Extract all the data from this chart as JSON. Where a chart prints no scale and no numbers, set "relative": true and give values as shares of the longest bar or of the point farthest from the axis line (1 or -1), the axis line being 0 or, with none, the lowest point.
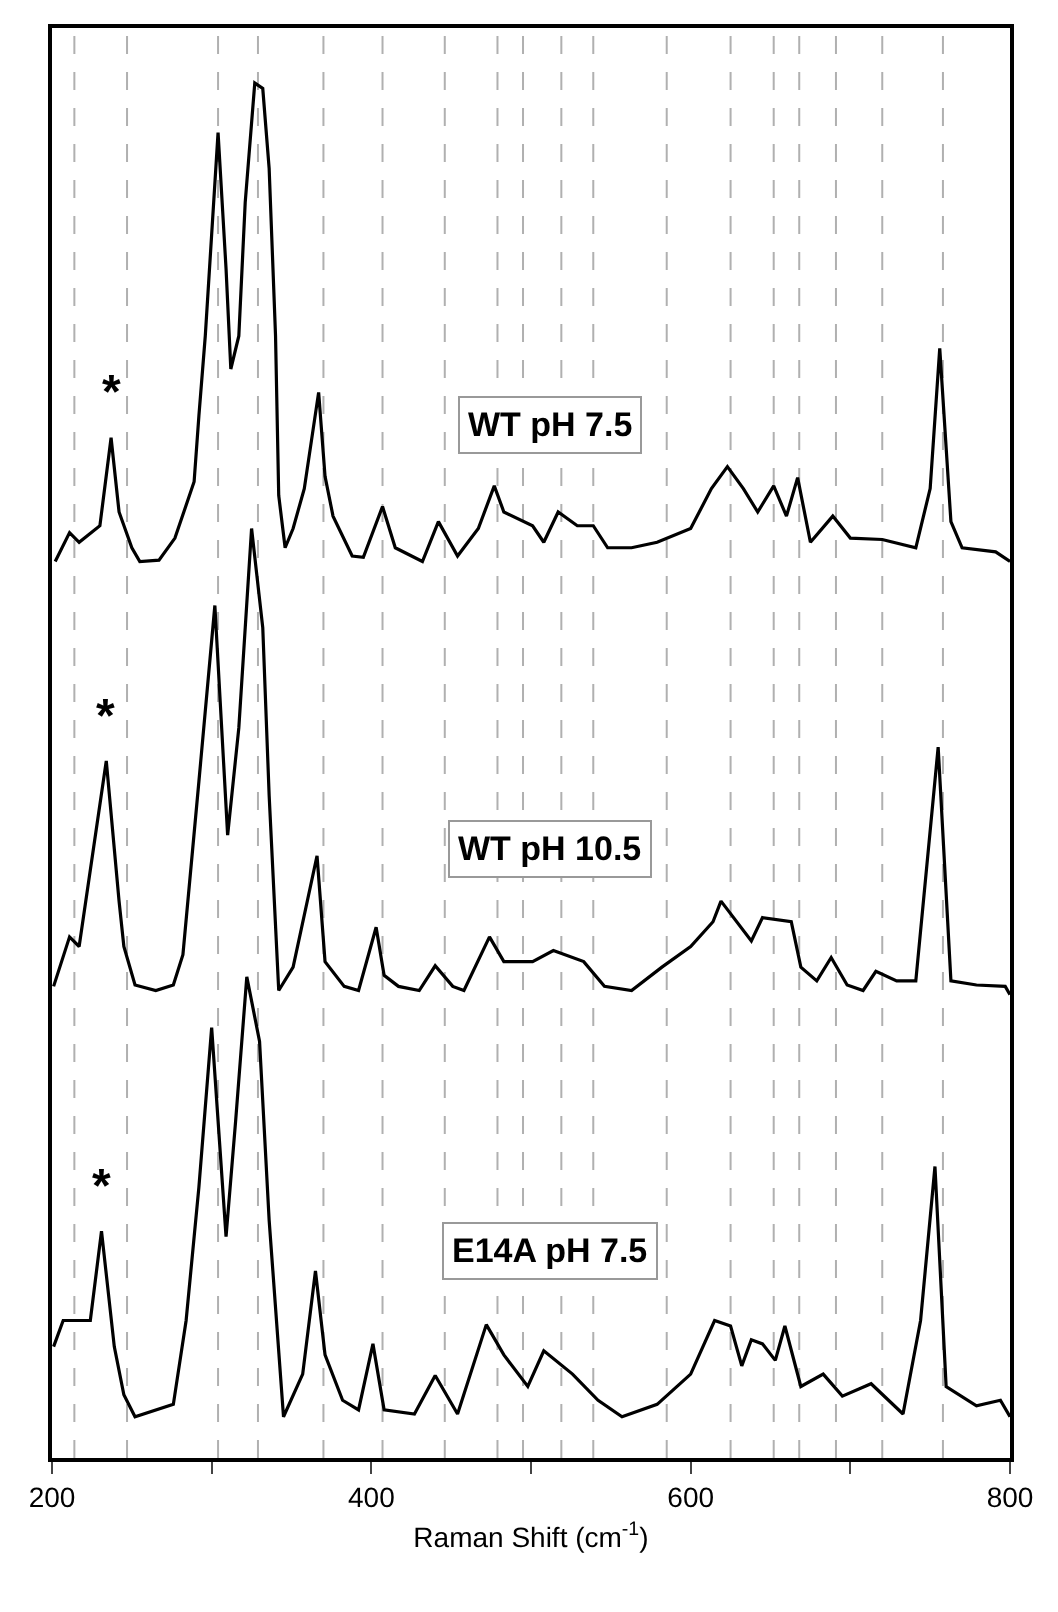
{
  "chart_data": {
    "type": "line",
    "relative": true,
    "xlabel": "Raman Shift (cm$^{-1}$)",
    "xlim": [
      200,
      800
    ],
    "xticks": [
      200,
      {
        "value": 300,
        "label": null
      },
      400,
      {
        "value": 500,
        "label": null
      },
      600,
      {
        "value": 700,
        "label": null
      },
      800
    ],
    "grid": false,
    "legend": false,
    "marker": "none",
    "line_style": "solid",
    "series": [
      {
        "name": "WT pH 7.5",
        "color": "#000000",
        "x": [
          202,
          211,
          217,
          230,
          237,
          242,
          250,
          255,
          267,
          277,
          289,
          292,
          296,
          304,
          309,
          312,
          317,
          321,
          327,
          332,
          336,
          340,
          342,
          346,
          351,
          358,
          367,
          371,
          376,
          388,
          395,
          407,
          415,
          432,
          442,
          454,
          467,
          477,
          483,
          501,
          508,
          517,
          529,
          539,
          548,
          563,
          579,
          600,
          613,
          623,
          633,
          642,
          652,
          660,
          667,
          675,
          689,
          700,
          720,
          741,
          750,
          756,
          763,
          770,
          791,
          800
        ],
        "values": [
          0.652,
          0.673,
          0.666,
          0.678,
          0.742,
          0.688,
          0.662,
          0.652,
          0.653,
          0.669,
          0.71,
          0.758,
          0.816,
          0.964,
          0.865,
          0.792,
          0.816,
          0.913,
          1.0,
          0.996,
          0.938,
          0.816,
          0.7,
          0.662,
          0.676,
          0.705,
          0.775,
          0.714,
          0.685,
          0.656,
          0.655,
          0.692,
          0.662,
          0.652,
          0.681,
          0.656,
          0.676,
          0.707,
          0.688,
          0.678,
          0.666,
          0.688,
          0.678,
          0.678,
          0.662,
          0.662,
          0.666,
          0.676,
          0.705,
          0.721,
          0.705,
          0.688,
          0.707,
          0.685,
          0.713,
          0.666,
          0.685,
          0.669,
          0.668,
          0.662,
          0.705,
          0.807,
          0.681,
          0.662,
          0.659,
          0.652
        ]
      },
      {
        "name": "WT pH 10.5",
        "color": "#000000",
        "x": [
          201,
          211,
          217,
          234,
          242,
          245,
          252,
          265,
          276,
          282,
          292,
          302,
          310,
          317,
          325,
          332,
          336,
          342,
          351,
          366,
          371,
          383,
          392,
          403,
          408,
          417,
          430,
          440,
          451,
          458,
          474,
          483,
          501,
          514,
          533,
          546,
          563,
          582,
          600,
          614,
          619,
          638,
          645,
          663,
          669,
          679,
          688,
          698,
          708,
          716,
          729,
          741,
          755,
          763,
          779,
          797,
          800
        ],
        "values": [
          0.343,
          0.379,
          0.372,
          0.507,
          0.405,
          0.372,
          0.344,
          0.34,
          0.344,
          0.366,
          0.492,
          0.62,
          0.453,
          0.531,
          0.676,
          0.604,
          0.482,
          0.34,
          0.357,
          0.438,
          0.361,
          0.343,
          0.34,
          0.386,
          0.351,
          0.343,
          0.34,
          0.358,
          0.343,
          0.34,
          0.379,
          0.361,
          0.361,
          0.369,
          0.361,
          0.343,
          0.34,
          0.357,
          0.372,
          0.39,
          0.405,
          0.376,
          0.393,
          0.39,
          0.357,
          0.347,
          0.364,
          0.344,
          0.34,
          0.354,
          0.347,
          0.347,
          0.517,
          0.347,
          0.344,
          0.343,
          0.337
        ]
      },
      {
        "name": "E14A pH 7.5",
        "color": "#000000",
        "x": [
          201,
          207,
          224,
          231,
          239,
          245,
          252,
          276,
          284,
          292,
          300,
          309,
          315,
          322,
          330,
          336,
          345,
          357,
          365,
          371,
          382,
          392,
          401,
          408,
          427,
          440,
          454,
          472,
          483,
          498,
          508,
          526,
          542,
          557,
          579,
          600,
          615,
          625,
          632,
          638,
          645,
          653,
          659,
          669,
          683,
          695,
          713,
          733,
          744,
          753,
          760,
          779,
          794,
          800
        ],
        "values": [
          0.081,
          0.1,
          0.1,
          0.165,
          0.081,
          0.046,
          0.03,
          0.039,
          0.1,
          0.197,
          0.313,
          0.161,
          0.245,
          0.35,
          0.303,
          0.173,
          0.03,
          0.061,
          0.136,
          0.075,
          0.042,
          0.035,
          0.083,
          0.035,
          0.032,
          0.06,
          0.032,
          0.097,
          0.075,
          0.052,
          0.078,
          0.061,
          0.042,
          0.03,
          0.039,
          0.061,
          0.1,
          0.096,
          0.067,
          0.086,
          0.083,
          0.071,
          0.096,
          0.052,
          0.061,
          0.045,
          0.054,
          0.032,
          0.1,
          0.212,
          0.052,
          0.038,
          0.042,
          0.03
        ]
      }
    ],
    "annotations": [
      {
        "text": "*",
        "x": 237,
        "y": 0.742
      },
      {
        "text": "*",
        "x": 234,
        "y": 0.507
      },
      {
        "text": "*",
        "x": 231,
        "y": 0.165
      }
    ],
    "ref_lines": [
      {
        "axis": "x",
        "value": 214,
        "color": "#b0b0b0",
        "line_style": "dashed"
      },
      {
        "axis": "x",
        "value": 247,
        "color": "#b0b0b0",
        "line_style": "dashed"
      },
      {
        "axis": "x",
        "value": 304,
        "color": "#b0b0b0",
        "line_style": "dashed"
      },
      {
        "axis": "x",
        "value": 329,
        "color": "#b0b0b0",
        "line_style": "dashed"
      },
      {
        "axis": "x",
        "value": 370,
        "color": "#b0b0b0",
        "line_style": "dashed"
      },
      {
        "axis": "x",
        "value": 407,
        "color": "#b0b0b0",
        "line_style": "dashed"
      },
      {
        "axis": "x",
        "value": 446,
        "color": "#b0b0b0",
        "line_style": "dashed"
      },
      {
        "axis": "x",
        "value": 479,
        "color": "#b0b0b0",
        "line_style": "dashed"
      },
      {
        "axis": "x",
        "value": 495,
        "color": "#b0b0b0",
        "line_style": "dashed"
      },
      {
        "axis": "x",
        "value": 519,
        "color": "#b0b0b0",
        "line_style": "dashed"
      },
      {
        "axis": "x",
        "value": 539,
        "color": "#b0b0b0",
        "line_style": "dashed"
      },
      {
        "axis": "x",
        "value": 585,
        "color": "#b0b0b0",
        "line_style": "dashed"
      },
      {
        "axis": "x",
        "value": 625,
        "color": "#b0b0b0",
        "line_style": "dashed"
      },
      {
        "axis": "x",
        "value": 652,
        "color": "#b0b0b0",
        "line_style": "dashed"
      },
      {
        "axis": "x",
        "value": 668,
        "color": "#b0b0b0",
        "line_style": "dashed"
      },
      {
        "axis": "x",
        "value": 691,
        "color": "#b0b0b0",
        "line_style": "dashed"
      },
      {
        "axis": "x",
        "value": 720,
        "color": "#b0b0b0",
        "line_style": "dashed"
      },
      {
        "axis": "x",
        "value": 758,
        "color": "#b0b0b0",
        "line_style": "dashed"
      }
    ]
  }
}
